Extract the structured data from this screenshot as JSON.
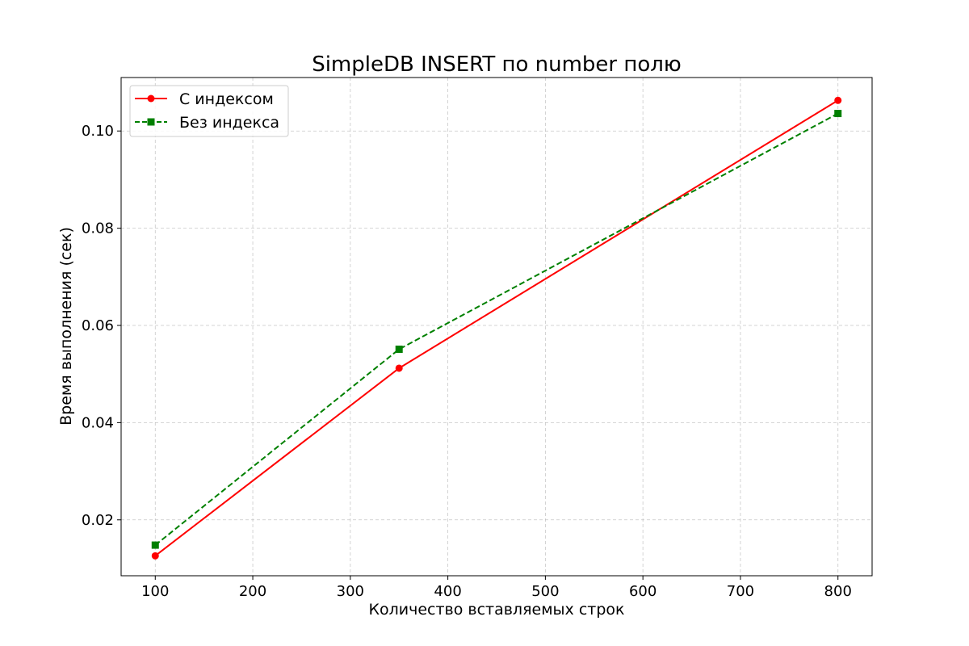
{
  "chart_data": {
    "type": "line",
    "title": "SimpleDB INSERT по number полю",
    "xlabel": "Количество вставляемых строк",
    "ylabel": "Время выполнения (сек)",
    "xlim": [
      65,
      835
    ],
    "ylim": [
      0.0085,
      0.111
    ],
    "xticks": [
      100,
      200,
      300,
      400,
      500,
      600,
      700,
      800
    ],
    "yticks": [
      0.02,
      0.04,
      0.06,
      0.08,
      0.1
    ],
    "ytick_labels": [
      "0.02",
      "0.04",
      "0.06",
      "0.08",
      "0.10"
    ],
    "grid": true,
    "legend_position": "top-left",
    "x": [
      100,
      350,
      800
    ],
    "series": [
      {
        "name": "С индексом",
        "values": [
          0.0126,
          0.0512,
          0.1063
        ],
        "color": "#ff0000",
        "line_style": "solid",
        "marker": "circle"
      },
      {
        "name": "Без индекса",
        "values": [
          0.0148,
          0.0551,
          0.1036
        ],
        "color": "#008000",
        "line_style": "dashed",
        "marker": "square"
      }
    ]
  }
}
